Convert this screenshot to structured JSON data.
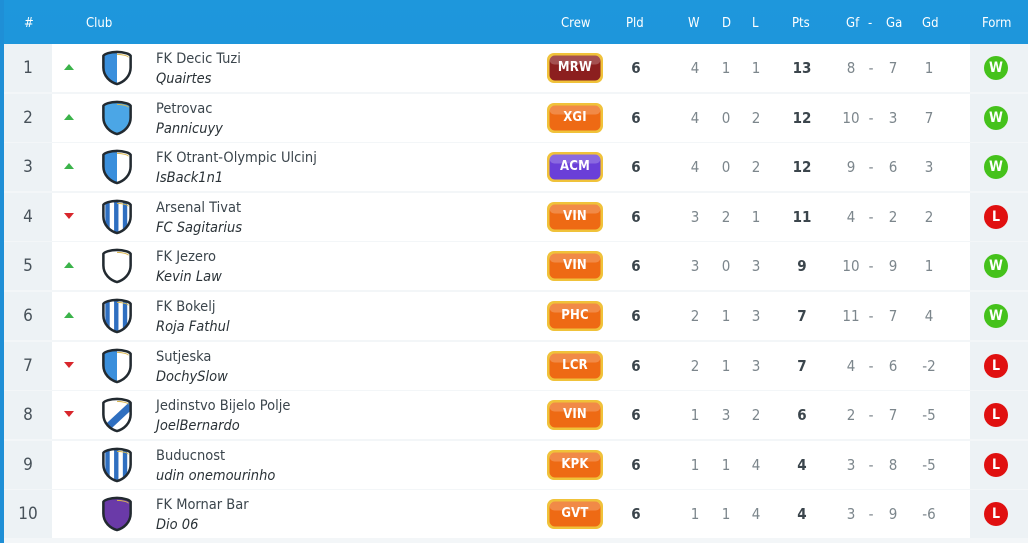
{
  "headers": {
    "pos": "#",
    "club": "Club",
    "crew": "Crew",
    "pld": "Pld",
    "w": "W",
    "d": "D",
    "l": "L",
    "pts": "Pts",
    "gf": "Gf",
    "dash": "-",
    "ga": "Ga",
    "gd": "Gd",
    "form": "Form"
  },
  "rows": [
    {
      "pos": "1",
      "trend": "up",
      "crest": "half",
      "crest_color": "#3a8fdc",
      "club": "FK Decic Tuzi",
      "user": "Quairtes",
      "crew": "MRW",
      "crew_color": "#8c1f1f",
      "pld": "6",
      "w": "4",
      "d": "1",
      "l": "1",
      "pts": "13",
      "gf": "8",
      "ga": "7",
      "gd": "1",
      "form": "W"
    },
    {
      "pos": "2",
      "trend": "up",
      "crest": "solid",
      "crest_color": "#4ba6e6",
      "club": "Petrovac",
      "user": "Pannicuyy",
      "crew": "XGI",
      "crew_color": "#ee6a14",
      "pld": "6",
      "w": "4",
      "d": "0",
      "l": "2",
      "pts": "12",
      "gf": "10",
      "ga": "3",
      "gd": "7",
      "form": "W"
    },
    {
      "pos": "3",
      "trend": "up",
      "crest": "half",
      "crest_color": "#3a8fdc",
      "club": "FK Otrant-Olympic Ulcinj",
      "user": "IsBack1n1",
      "crew": "ACM",
      "crew_color": "#6a3fd8",
      "pld": "6",
      "w": "4",
      "d": "0",
      "l": "2",
      "pts": "12",
      "gf": "9",
      "ga": "6",
      "gd": "3",
      "form": "W"
    },
    {
      "pos": "4",
      "trend": "down",
      "crest": "stripes",
      "crest_color": "#2f6fc0",
      "club": "Arsenal Tivat",
      "user": "FC Sagitarius",
      "crew": "VIN",
      "crew_color": "#ee6a14",
      "pld": "6",
      "w": "3",
      "d": "2",
      "l": "1",
      "pts": "11",
      "gf": "4",
      "ga": "2",
      "gd": "2",
      "form": "L"
    },
    {
      "pos": "5",
      "trend": "up",
      "crest": "white",
      "crest_color": "#ffffff",
      "club": "FK Jezero",
      "user": "Kevin Law",
      "crew": "VIN",
      "crew_color": "#ee6a14",
      "pld": "6",
      "w": "3",
      "d": "0",
      "l": "3",
      "pts": "9",
      "gf": "10",
      "ga": "9",
      "gd": "1",
      "form": "W"
    },
    {
      "pos": "6",
      "trend": "up",
      "crest": "stripes",
      "crest_color": "#2f6fc0",
      "club": "FK Bokelj",
      "user": "Roja Fathul",
      "crew": "PHC",
      "crew_color": "#ee6a14",
      "pld": "6",
      "w": "2",
      "d": "1",
      "l": "3",
      "pts": "7",
      "gf": "11",
      "ga": "7",
      "gd": "4",
      "form": "W"
    },
    {
      "pos": "7",
      "trend": "down",
      "crest": "half",
      "crest_color": "#3a8fdc",
      "club": "Sutjeska",
      "user": "DochySlow",
      "crew": "LCR",
      "crew_color": "#ee6a14",
      "pld": "6",
      "w": "2",
      "d": "1",
      "l": "3",
      "pts": "7",
      "gf": "4",
      "ga": "6",
      "gd": "-2",
      "form": "L"
    },
    {
      "pos": "8",
      "trend": "down",
      "crest": "diagonal",
      "crest_color": "#2f6fc0",
      "club": "Jedinstvo Bijelo Polje",
      "user": "JoelBernardo",
      "crew": "VIN",
      "crew_color": "#ee6a14",
      "pld": "6",
      "w": "1",
      "d": "3",
      "l": "2",
      "pts": "6",
      "gf": "2",
      "ga": "7",
      "gd": "-5",
      "form": "L"
    },
    {
      "pos": "9",
      "trend": "none",
      "crest": "stripes",
      "crest_color": "#2f6fc0",
      "club": "Buducnost",
      "user": "udin onemourinho",
      "crew": "KPK",
      "crew_color": "#ee6a14",
      "pld": "6",
      "w": "1",
      "d": "1",
      "l": "4",
      "pts": "4",
      "gf": "3",
      "ga": "8",
      "gd": "-5",
      "form": "L"
    },
    {
      "pos": "10",
      "trend": "none",
      "crest": "solid",
      "crest_color": "#6a3aa8",
      "club": "FK Mornar Bar",
      "user": "Dio 06",
      "crew": "GVT",
      "crew_color": "#ee6a14",
      "pld": "6",
      "w": "1",
      "d": "1",
      "l": "4",
      "pts": "4",
      "gf": "3",
      "ga": "9",
      "gd": "-6",
      "form": "L"
    }
  ],
  "colors": {
    "header_bg": "#1e97dc",
    "win": "#45c21b",
    "loss": "#e01010",
    "trend_up": "#3bb34a",
    "trend_down": "#d8262c"
  }
}
